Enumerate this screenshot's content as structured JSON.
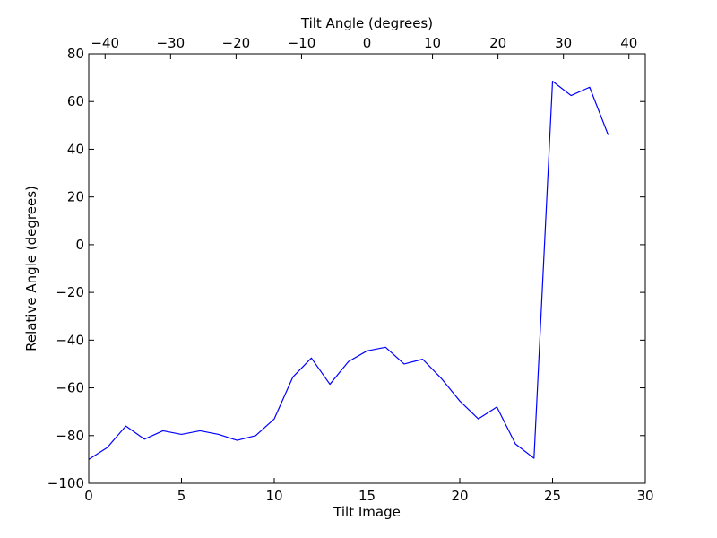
{
  "chart_data": {
    "type": "line",
    "title": "",
    "xlabel": "Tilt Image",
    "ylabel": "Relative Angle (degrees)",
    "xlim": [
      0,
      30
    ],
    "ylim": [
      -100,
      80
    ],
    "x_ticks": [
      0,
      5,
      10,
      15,
      20,
      25,
      30
    ],
    "x_tick_labels": [
      "0",
      "5",
      "10",
      "15",
      "20",
      "25",
      "30"
    ],
    "y_ticks": [
      -100,
      -80,
      -60,
      -40,
      -20,
      0,
      20,
      40,
      60,
      80
    ],
    "y_tick_labels": [
      "−100",
      "−80",
      "−60",
      "−40",
      "−20",
      "0",
      "20",
      "40",
      "60",
      "80"
    ],
    "top_axis": {
      "label": "Tilt Angle (degrees)",
      "lim": [
        -42.5,
        42.5
      ],
      "ticks": [
        -40,
        -30,
        -20,
        -10,
        0,
        10,
        20,
        30,
        40
      ],
      "tick_labels": [
        "−40",
        "−30",
        "−20",
        "−10",
        "0",
        "10",
        "20",
        "30",
        "40"
      ]
    },
    "grid": false,
    "legend": "none",
    "series": [
      {
        "color": "#0000ff",
        "x": [
          0,
          1,
          2,
          3,
          4,
          5,
          6,
          7,
          8,
          9,
          10,
          11,
          12,
          13,
          14,
          15,
          16,
          17,
          18,
          19,
          20,
          21,
          22,
          23,
          24,
          25,
          26,
          27,
          28
        ],
        "values": [
          -90,
          -85,
          -76,
          -81.5,
          -78,
          -79.5,
          -78,
          -79.5,
          -82,
          -80,
          -73,
          -55.5,
          -47.5,
          -58.5,
          -49,
          -44.5,
          -43,
          -50,
          -48,
          -56,
          -65.5,
          -73,
          -68,
          -83.5,
          -89.5,
          68.5,
          62.5,
          66,
          46
        ]
      }
    ]
  }
}
